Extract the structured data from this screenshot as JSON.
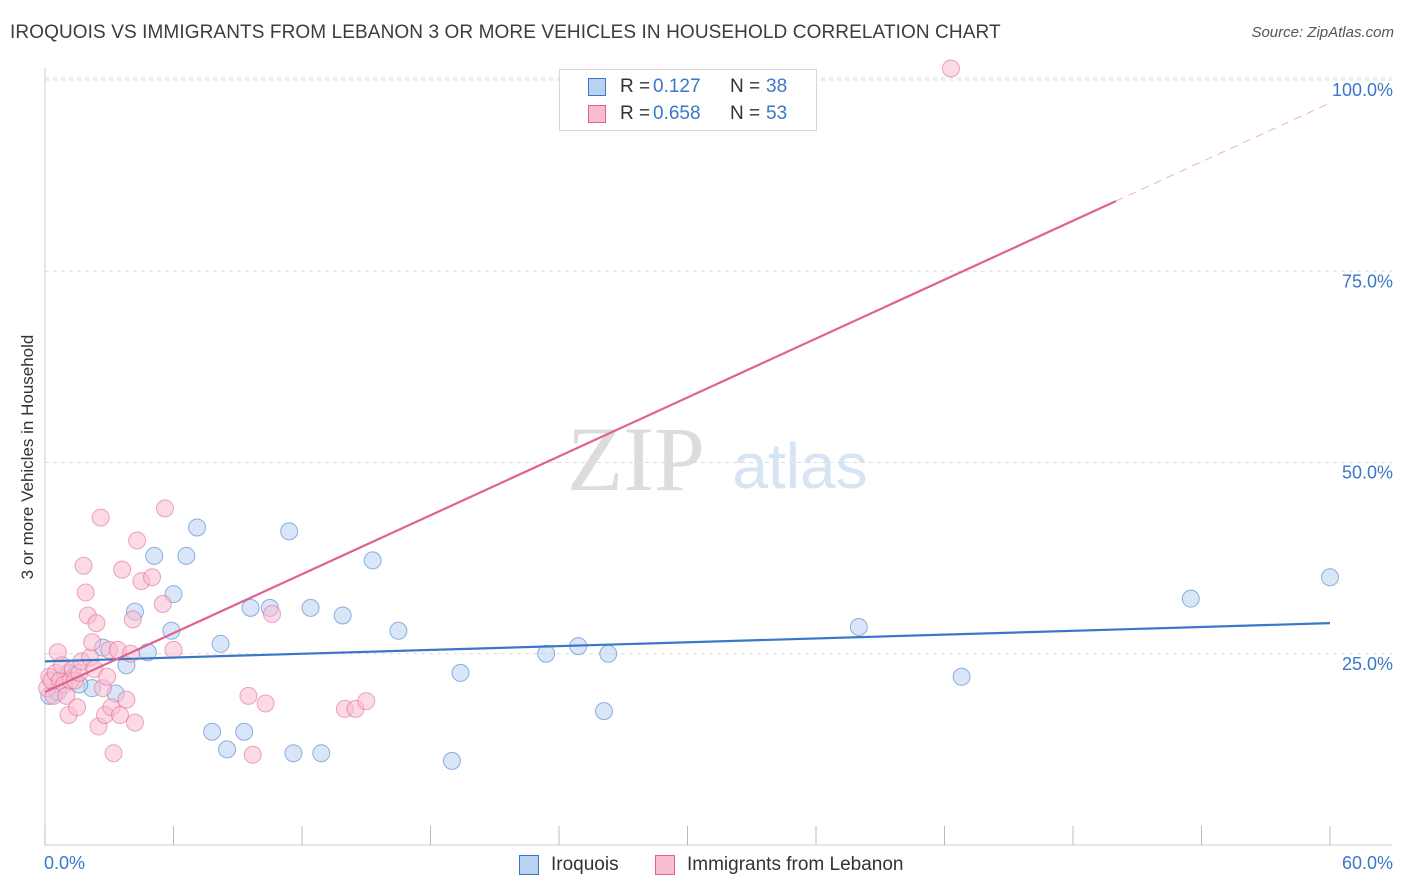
{
  "title": "IROQUOIS VS IMMIGRANTS FROM LEBANON 3 OR MORE VEHICLES IN HOUSEHOLD CORRELATION CHART",
  "source": "Source: ZipAtlas.com",
  "watermark": {
    "zip": "ZIP",
    "atlas": "atlas"
  },
  "colors": {
    "blue": "#3a77c9",
    "pink": "#e0628d",
    "blue_fill": "#b9d2f2",
    "pink_fill": "#f7bccf",
    "grid": "#dddddd",
    "tick_label": "#3a77c9"
  },
  "legend_top": {
    "rows": [
      {
        "r_label": "R =",
        "r_value": "0.127",
        "n_label": "N =",
        "n_value": "38"
      },
      {
        "r_label": "R =",
        "r_value": "0.658",
        "n_label": "N =",
        "n_value": "53"
      }
    ]
  },
  "legend_bottom": {
    "items": [
      "Iroquois",
      "Immigrants from Lebanon"
    ]
  },
  "chart_data": {
    "type": "scatter",
    "xlabel": "",
    "ylabel": "3 or more Vehicles in Household",
    "xlim": [
      0,
      60
    ],
    "ylim": [
      0,
      100
    ],
    "x_tick_labels": [
      "0.0%",
      "60.0%"
    ],
    "y_tick_labels": [
      "25.0%",
      "50.0%",
      "75.0%",
      "100.0%"
    ],
    "y_ticks": [
      25,
      50,
      75,
      100
    ],
    "grid": true,
    "legend_position": "top-center",
    "series": [
      {
        "name": "Iroquois",
        "color": "#3a77c9",
        "trend": {
          "x0": 0,
          "y0": 24.0,
          "x1": 60,
          "y1": 29.0
        },
        "points": [
          [
            0.2,
            19.5
          ],
          [
            0.6,
            20.0
          ],
          [
            1.1,
            22.5
          ],
          [
            2.2,
            20.5
          ],
          [
            2.7,
            25.8
          ],
          [
            3.3,
            19.8
          ],
          [
            3.8,
            23.5
          ],
          [
            4.2,
            30.5
          ],
          [
            4.8,
            25.2
          ],
          [
            5.1,
            37.8
          ],
          [
            5.9,
            28.0
          ],
          [
            6.0,
            32.8
          ],
          [
            6.6,
            37.8
          ],
          [
            7.1,
            41.5
          ],
          [
            7.8,
            14.8
          ],
          [
            8.2,
            26.3
          ],
          [
            8.5,
            12.5
          ],
          [
            9.3,
            14.8
          ],
          [
            9.6,
            31.0
          ],
          [
            10.5,
            31.0
          ],
          [
            11.4,
            41.0
          ],
          [
            11.6,
            12.0
          ],
          [
            12.4,
            31.0
          ],
          [
            12.9,
            12.0
          ],
          [
            13.9,
            30.0
          ],
          [
            15.3,
            37.2
          ],
          [
            16.5,
            28.0
          ],
          [
            19.0,
            11.0
          ],
          [
            19.4,
            22.5
          ],
          [
            23.4,
            25.0
          ],
          [
            24.9,
            26.0
          ],
          [
            26.1,
            17.5
          ],
          [
            26.3,
            25.0
          ],
          [
            38.0,
            28.5
          ],
          [
            42.8,
            22.0
          ],
          [
            53.5,
            32.2
          ],
          [
            60.0,
            35.0
          ],
          [
            1.6,
            21.0
          ]
        ]
      },
      {
        "name": "Immigrants from Lebanon",
        "color": "#e0628d",
        "trend": {
          "x0": 0,
          "y0": 20.0,
          "x1": 60,
          "y1": 97.0,
          "solid_until_x": 50.0
        },
        "points": [
          [
            0.1,
            20.5
          ],
          [
            0.2,
            22.0
          ],
          [
            0.3,
            21.5
          ],
          [
            0.4,
            19.5
          ],
          [
            0.5,
            22.5
          ],
          [
            0.6,
            25.2
          ],
          [
            0.7,
            21.5
          ],
          [
            0.8,
            23.5
          ],
          [
            0.9,
            21.0
          ],
          [
            1.0,
            19.5
          ],
          [
            1.1,
            17.0
          ],
          [
            1.2,
            21.5
          ],
          [
            1.3,
            23.0
          ],
          [
            1.4,
            21.5
          ],
          [
            1.5,
            18.0
          ],
          [
            1.6,
            22.5
          ],
          [
            1.7,
            24.0
          ],
          [
            1.8,
            36.5
          ],
          [
            1.9,
            33.0
          ],
          [
            2.0,
            30.0
          ],
          [
            2.1,
            24.5
          ],
          [
            2.2,
            26.5
          ],
          [
            2.3,
            23.0
          ],
          [
            2.4,
            29.0
          ],
          [
            2.5,
            15.5
          ],
          [
            2.6,
            42.8
          ],
          [
            2.7,
            20.5
          ],
          [
            2.8,
            17.0
          ],
          [
            2.9,
            22.0
          ],
          [
            3.0,
            25.5
          ],
          [
            3.1,
            18.0
          ],
          [
            3.2,
            12.0
          ],
          [
            3.4,
            25.5
          ],
          [
            3.5,
            17.0
          ],
          [
            3.6,
            36.0
          ],
          [
            3.8,
            19.0
          ],
          [
            4.0,
            25.0
          ],
          [
            4.1,
            29.5
          ],
          [
            4.2,
            16.0
          ],
          [
            4.3,
            39.8
          ],
          [
            4.5,
            34.5
          ],
          [
            5.0,
            35.0
          ],
          [
            5.5,
            31.5
          ],
          [
            5.6,
            44.0
          ],
          [
            6.0,
            25.5
          ],
          [
            9.5,
            19.5
          ],
          [
            9.7,
            11.8
          ],
          [
            10.3,
            18.5
          ],
          [
            10.6,
            30.2
          ],
          [
            14.0,
            17.8
          ],
          [
            14.5,
            17.8
          ],
          [
            15.0,
            18.8
          ],
          [
            42.3,
            101.5
          ]
        ]
      }
    ]
  }
}
